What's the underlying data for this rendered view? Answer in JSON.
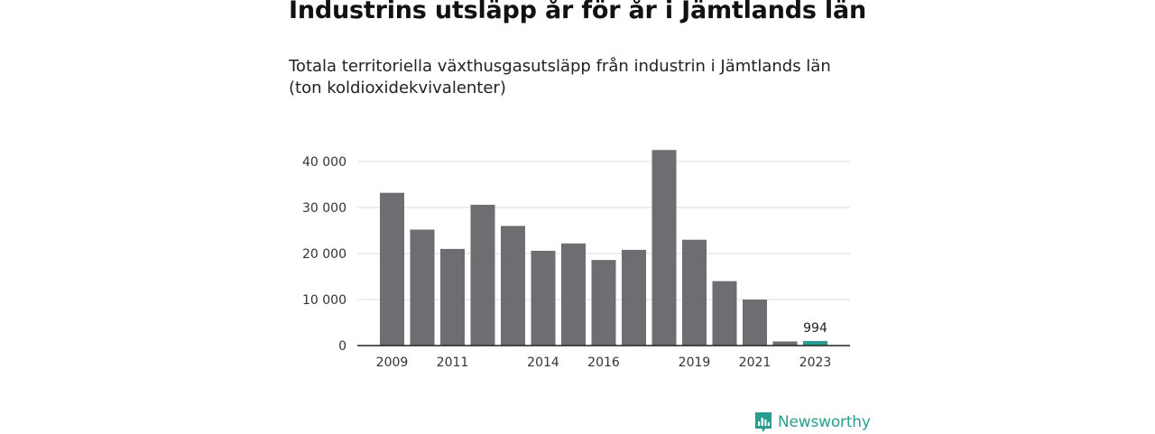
{
  "title": "Industrins utsläpp år för år i Jämtlands län",
  "subtitle": "Totala territoriella växthusgasutsläpp från industrin i Jämtlands län (ton koldioxidekvivalenter)",
  "brand": {
    "name": "Newsworthy",
    "icon": "newsworthy-logo-icon",
    "color": "#2a9d8f"
  },
  "chart_data": {
    "type": "bar",
    "categories": [
      "2009",
      "2010",
      "2011",
      "2012",
      "2013",
      "2014",
      "2015",
      "2016",
      "2017",
      "2018",
      "2019",
      "2020",
      "2021",
      "2022",
      "2023"
    ],
    "values": [
      33200,
      25200,
      21000,
      30600,
      26000,
      20600,
      22200,
      18600,
      20800,
      42500,
      23000,
      14000,
      10000,
      900,
      994
    ],
    "x_tick_labels": [
      "2009",
      "2011",
      "2014",
      "2016",
      "2019",
      "2021",
      "2023"
    ],
    "y_ticks": [
      0,
      10000,
      20000,
      30000,
      40000
    ],
    "y_tick_labels": [
      "0",
      "10 000",
      "20 000",
      "30 000",
      "40 000"
    ],
    "ylim": [
      0,
      43000
    ],
    "grid": true,
    "highlight": {
      "category": "2023",
      "label": "994"
    },
    "colors": {
      "bar": "#6e6d72",
      "highlight": "#2a9d8f",
      "grid": "#dddddd",
      "axis": "#222222"
    }
  }
}
